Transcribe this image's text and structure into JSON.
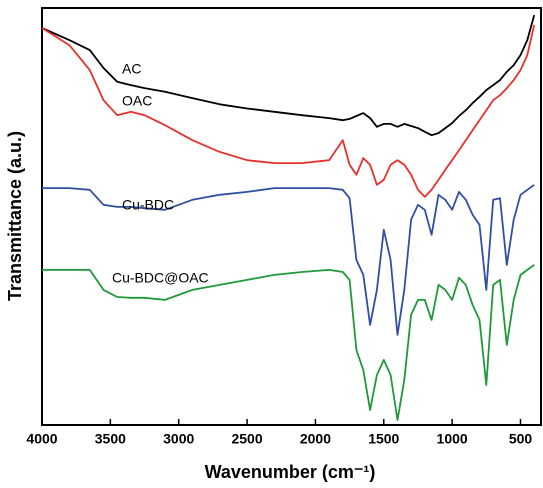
{
  "chart_data": {
    "type": "line",
    "xlabel": "Wavenumber (cm⁻¹)",
    "ylabel": "Transmittance (a.u.)",
    "xlim": [
      4000,
      350
    ],
    "ylim": [
      0,
      100
    ],
    "xticks": [
      4000,
      3500,
      3000,
      2500,
      2000,
      1500,
      1000,
      500
    ],
    "x": [
      4000,
      3800,
      3650,
      3550,
      3450,
      3350,
      3250,
      3100,
      2900,
      2700,
      2500,
      2300,
      2100,
      1900,
      1800,
      1750,
      1700,
      1650,
      1600,
      1550,
      1500,
      1450,
      1400,
      1350,
      1300,
      1250,
      1200,
      1150,
      1100,
      1050,
      1000,
      950,
      900,
      850,
      800,
      750,
      700,
      650,
      600,
      550,
      500,
      450,
      400
    ],
    "series": [
      {
        "name": "AC",
        "color": "#000000",
        "values": [
          95.2,
          92.3,
          89.9,
          85.6,
          82.3,
          81.5,
          80.8,
          79.9,
          78.4,
          76.9,
          75.9,
          75.1,
          74.3,
          73.6,
          73.1,
          73.4,
          74.1,
          74.8,
          73.6,
          71.5,
          72.2,
          72.2,
          71.5,
          72.2,
          71.7,
          71.2,
          70.3,
          69.5,
          70.0,
          71.2,
          72.4,
          74.1,
          75.5,
          77.2,
          78.7,
          80.3,
          81.5,
          82.7,
          84.7,
          86.3,
          88.7,
          92.3,
          98.3
        ]
      },
      {
        "name": "OAC",
        "color": "#e8302a",
        "values": [
          95.2,
          91.1,
          85.1,
          77.9,
          74.3,
          75.1,
          74.3,
          71.9,
          68.3,
          65.5,
          63.5,
          62.8,
          62.8,
          63.5,
          68.3,
          62.4,
          60.0,
          64.0,
          62.4,
          57.6,
          58.8,
          62.4,
          63.5,
          62.4,
          60.0,
          56.4,
          54.7,
          56.4,
          58.8,
          61.2,
          63.5,
          65.9,
          68.3,
          70.7,
          73.1,
          75.5,
          77.9,
          79.1,
          80.8,
          82.7,
          85.1,
          88.7,
          95.9
        ]
      },
      {
        "name": "Cu-BDC",
        "color": "#2e4fa3",
        "values": [
          56.8,
          56.8,
          56.4,
          52.8,
          52.3,
          52.3,
          52.0,
          51.6,
          54.0,
          55.2,
          55.9,
          56.8,
          56.8,
          56.8,
          56.4,
          54.4,
          39.6,
          36.0,
          24.0,
          32.4,
          46.8,
          39.6,
          21.6,
          32.4,
          49.2,
          52.8,
          51.6,
          45.6,
          55.2,
          54.0,
          51.6,
          55.9,
          54.0,
          50.4,
          48.0,
          32.4,
          54.0,
          54.4,
          38.4,
          49.2,
          55.2,
          56.4,
          57.6
        ]
      },
      {
        "name": "Cu-BDC@OAC",
        "color": "#1f9a3a",
        "values": [
          37.2,
          37.2,
          37.2,
          32.4,
          30.7,
          30.5,
          30.5,
          30.0,
          32.4,
          33.6,
          34.8,
          36.0,
          36.7,
          37.2,
          36.7,
          34.8,
          18.0,
          13.2,
          3.6,
          12.0,
          15.6,
          12.0,
          1.2,
          10.8,
          26.4,
          30.0,
          30.0,
          25.2,
          33.6,
          32.4,
          30.0,
          35.3,
          33.6,
          28.8,
          25.2,
          9.6,
          33.6,
          34.8,
          19.2,
          30.0,
          36.0,
          37.2,
          38.4
        ]
      }
    ]
  }
}
